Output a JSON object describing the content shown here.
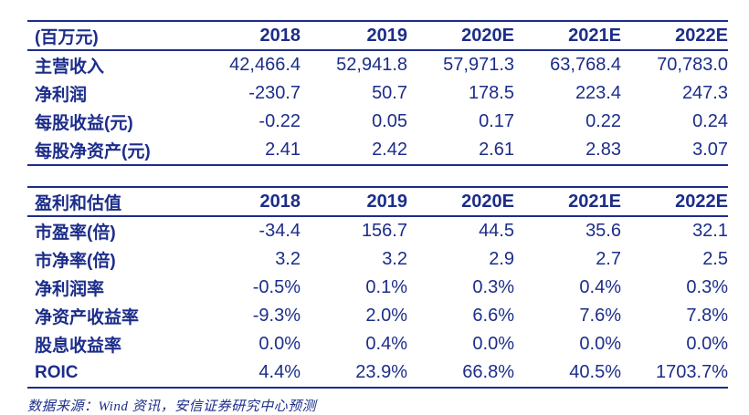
{
  "page": {
    "background_color": "#ffffff",
    "accent_color": "#1c2d8a"
  },
  "tables": [
    {
      "name": "financial-summary",
      "header": [
        "(百万元)",
        "2018",
        "2019",
        "2020E",
        "2021E",
        "2022E"
      ],
      "rows": [
        [
          "主营收入",
          "42,466.4",
          "52,941.8",
          "57,971.3",
          "63,768.4",
          "70,783.0"
        ],
        [
          "净利润",
          "-230.7",
          "50.7",
          "178.5",
          "223.4",
          "247.3"
        ],
        [
          "每股收益(元)",
          "-0.22",
          "0.05",
          "0.17",
          "0.22",
          "0.24"
        ],
        [
          "每股净资产(元)",
          "2.41",
          "2.42",
          "2.61",
          "2.83",
          "3.07"
        ]
      ]
    },
    {
      "name": "profit-and-valuation",
      "header": [
        "盈利和估值",
        "2018",
        "2019",
        "2020E",
        "2021E",
        "2022E"
      ],
      "rows": [
        [
          "市盈率(倍)",
          "-34.4",
          "156.7",
          "44.5",
          "35.6",
          "32.1"
        ],
        [
          "市净率(倍)",
          "3.2",
          "3.2",
          "2.9",
          "2.7",
          "2.5"
        ],
        [
          "净利润率",
          "-0.5%",
          "0.1%",
          "0.3%",
          "0.4%",
          "0.3%"
        ],
        [
          "净资产收益率",
          "-9.3%",
          "2.0%",
          "6.6%",
          "7.6%",
          "7.8%"
        ],
        [
          "股息收益率",
          "0.0%",
          "0.4%",
          "0.0%",
          "0.0%",
          "0.0%"
        ],
        [
          "ROIC",
          "4.4%",
          "23.9%",
          "66.8%",
          "40.5%",
          "1703.7%"
        ]
      ]
    }
  ],
  "footer": {
    "source_note": "数据来源：Wind 资讯，安信证券研究中心预测"
  }
}
